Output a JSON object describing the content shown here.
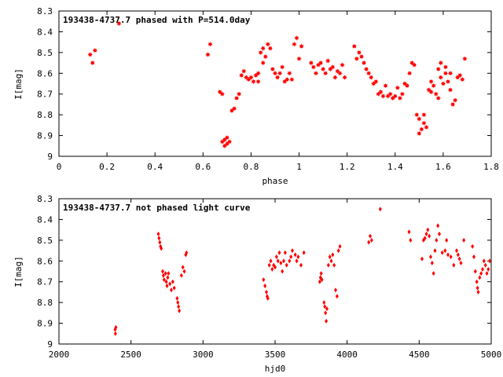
{
  "chart_data": [
    {
      "type": "scatter",
      "title": "193438-4737.7 phased with P=514.0day",
      "xlabel": "phase",
      "ylabel": "I[mag]",
      "xlim": [
        0,
        1.8
      ],
      "ylim": [
        9,
        8.3
      ],
      "y_inverted": true,
      "x_ticks": [
        "0",
        "0.2",
        "0.4",
        "0.6",
        "0.8",
        "1",
        "1.2",
        "1.4",
        "1.6",
        "1.8"
      ],
      "y_ticks": [
        "8.3",
        "8.4",
        "8.5",
        "8.6",
        "8.7",
        "8.8",
        "8.9",
        "9"
      ],
      "marker": "star",
      "color": "#ff0000",
      "points": [
        [
          0.13,
          8.51
        ],
        [
          0.14,
          8.55
        ],
        [
          0.15,
          8.49
        ],
        [
          0.25,
          8.36
        ],
        [
          0.62,
          8.51
        ],
        [
          0.63,
          8.46
        ],
        [
          0.67,
          8.69
        ],
        [
          0.68,
          8.7
        ],
        [
          0.68,
          8.93
        ],
        [
          0.69,
          8.95
        ],
        [
          0.69,
          8.92
        ],
        [
          0.7,
          8.94
        ],
        [
          0.7,
          8.91
        ],
        [
          0.71,
          8.93
        ],
        [
          0.72,
          8.78
        ],
        [
          0.73,
          8.77
        ],
        [
          0.74,
          8.72
        ],
        [
          0.75,
          8.7
        ],
        [
          0.76,
          8.61
        ],
        [
          0.77,
          8.59
        ],
        [
          0.78,
          8.62
        ],
        [
          0.79,
          8.63
        ],
        [
          0.8,
          8.62
        ],
        [
          0.81,
          8.64
        ],
        [
          0.82,
          8.61
        ],
        [
          0.83,
          8.6
        ],
        [
          0.83,
          8.64
        ],
        [
          0.84,
          8.5
        ],
        [
          0.85,
          8.55
        ],
        [
          0.85,
          8.48
        ],
        [
          0.86,
          8.52
        ],
        [
          0.87,
          8.46
        ],
        [
          0.88,
          8.48
        ],
        [
          0.89,
          8.58
        ],
        [
          0.9,
          8.6
        ],
        [
          0.91,
          8.62
        ],
        [
          0.92,
          8.6
        ],
        [
          0.93,
          8.57
        ],
        [
          0.94,
          8.64
        ],
        [
          0.95,
          8.63
        ],
        [
          0.96,
          8.6
        ],
        [
          0.97,
          8.63
        ],
        [
          0.98,
          8.46
        ],
        [
          0.99,
          8.43
        ],
        [
          1.0,
          8.53
        ],
        [
          1.01,
          8.47
        ],
        [
          1.05,
          8.55
        ],
        [
          1.06,
          8.57
        ],
        [
          1.07,
          8.6
        ],
        [
          1.08,
          8.56
        ],
        [
          1.09,
          8.55
        ],
        [
          1.1,
          8.58
        ],
        [
          1.11,
          8.6
        ],
        [
          1.12,
          8.54
        ],
        [
          1.13,
          8.58
        ],
        [
          1.14,
          8.57
        ],
        [
          1.15,
          8.62
        ],
        [
          1.16,
          8.59
        ],
        [
          1.17,
          8.6
        ],
        [
          1.18,
          8.56
        ],
        [
          1.19,
          8.62
        ],
        [
          1.23,
          8.47
        ],
        [
          1.24,
          8.53
        ],
        [
          1.25,
          8.5
        ],
        [
          1.26,
          8.52
        ],
        [
          1.27,
          8.55
        ],
        [
          1.28,
          8.58
        ],
        [
          1.29,
          8.6
        ],
        [
          1.3,
          8.62
        ],
        [
          1.31,
          8.65
        ],
        [
          1.32,
          8.64
        ],
        [
          1.33,
          8.7
        ],
        [
          1.34,
          8.69
        ],
        [
          1.35,
          8.71
        ],
        [
          1.36,
          8.66
        ],
        [
          1.37,
          8.71
        ],
        [
          1.38,
          8.7
        ],
        [
          1.39,
          8.72
        ],
        [
          1.4,
          8.71
        ],
        [
          1.41,
          8.67
        ],
        [
          1.42,
          8.72
        ],
        [
          1.43,
          8.7
        ],
        [
          1.44,
          8.65
        ],
        [
          1.45,
          8.66
        ],
        [
          1.46,
          8.6
        ],
        [
          1.47,
          8.55
        ],
        [
          1.48,
          8.56
        ],
        [
          1.49,
          8.8
        ],
        [
          1.5,
          8.82
        ],
        [
          1.5,
          8.89
        ],
        [
          1.51,
          8.87
        ],
        [
          1.52,
          8.84
        ],
        [
          1.52,
          8.8
        ],
        [
          1.53,
          8.86
        ],
        [
          1.54,
          8.68
        ],
        [
          1.55,
          8.69
        ],
        [
          1.55,
          8.64
        ],
        [
          1.56,
          8.66
        ],
        [
          1.57,
          8.7
        ],
        [
          1.58,
          8.72
        ],
        [
          1.58,
          8.58
        ],
        [
          1.59,
          8.62
        ],
        [
          1.59,
          8.55
        ],
        [
          1.6,
          8.65
        ],
        [
          1.61,
          8.6
        ],
        [
          1.61,
          8.57
        ],
        [
          1.62,
          8.64
        ],
        [
          1.63,
          8.6
        ],
        [
          1.63,
          8.68
        ],
        [
          1.64,
          8.75
        ],
        [
          1.65,
          8.73
        ],
        [
          1.66,
          8.62
        ],
        [
          1.67,
          8.61
        ],
        [
          1.68,
          8.63
        ],
        [
          1.69,
          8.53
        ]
      ]
    },
    {
      "type": "scatter",
      "title": "193438-4737.7 not phased light curve",
      "xlabel": "hjd0",
      "ylabel": "I[mag]",
      "xlim": [
        2000,
        5000
      ],
      "ylim": [
        9,
        8.3
      ],
      "y_inverted": true,
      "x_ticks": [
        "2000",
        "2500",
        "3000",
        "3500",
        "4000",
        "4500",
        "5000"
      ],
      "y_ticks": [
        "8.3",
        "8.4",
        "8.5",
        "8.6",
        "8.7",
        "8.8",
        "8.9",
        "9"
      ],
      "marker": "diamond",
      "color": "#ff0000",
      "points": [
        [
          2390,
          8.93
        ],
        [
          2392,
          8.95
        ],
        [
          2395,
          8.92
        ],
        [
          2690,
          8.47
        ],
        [
          2695,
          8.49
        ],
        [
          2700,
          8.51
        ],
        [
          2705,
          8.53
        ],
        [
          2710,
          8.54
        ],
        [
          2720,
          8.65
        ],
        [
          2725,
          8.67
        ],
        [
          2730,
          8.69
        ],
        [
          2740,
          8.66
        ],
        [
          2745,
          8.7
        ],
        [
          2750,
          8.72
        ],
        [
          2755,
          8.68
        ],
        [
          2760,
          8.66
        ],
        [
          2770,
          8.71
        ],
        [
          2780,
          8.74
        ],
        [
          2790,
          8.7
        ],
        [
          2800,
          8.73
        ],
        [
          2820,
          8.78
        ],
        [
          2825,
          8.8
        ],
        [
          2830,
          8.82
        ],
        [
          2835,
          8.84
        ],
        [
          2850,
          8.67
        ],
        [
          2860,
          8.63
        ],
        [
          2870,
          8.65
        ],
        [
          2880,
          8.57
        ],
        [
          2885,
          8.56
        ],
        [
          3420,
          8.69
        ],
        [
          3430,
          8.72
        ],
        [
          3440,
          8.75
        ],
        [
          3445,
          8.77
        ],
        [
          3450,
          8.78
        ],
        [
          3460,
          8.62
        ],
        [
          3470,
          8.6
        ],
        [
          3480,
          8.64
        ],
        [
          3490,
          8.62
        ],
        [
          3500,
          8.63
        ],
        [
          3510,
          8.58
        ],
        [
          3520,
          8.6
        ],
        [
          3530,
          8.56
        ],
        [
          3540,
          8.61
        ],
        [
          3550,
          8.65
        ],
        [
          3560,
          8.6
        ],
        [
          3570,
          8.56
        ],
        [
          3580,
          8.62
        ],
        [
          3600,
          8.6
        ],
        [
          3610,
          8.58
        ],
        [
          3620,
          8.55
        ],
        [
          3640,
          8.57
        ],
        [
          3650,
          8.6
        ],
        [
          3660,
          8.58
        ],
        [
          3680,
          8.62
        ],
        [
          3700,
          8.56
        ],
        [
          3810,
          8.7
        ],
        [
          3815,
          8.68
        ],
        [
          3820,
          8.66
        ],
        [
          3825,
          8.69
        ],
        [
          3840,
          8.8
        ],
        [
          3845,
          8.82
        ],
        [
          3850,
          8.85
        ],
        [
          3855,
          8.89
        ],
        [
          3860,
          8.83
        ],
        [
          3870,
          8.62
        ],
        [
          3880,
          8.58
        ],
        [
          3890,
          8.6
        ],
        [
          3900,
          8.57
        ],
        [
          3910,
          8.62
        ],
        [
          3920,
          8.74
        ],
        [
          3930,
          8.77
        ],
        [
          3940,
          8.55
        ],
        [
          3950,
          8.53
        ],
        [
          4150,
          8.51
        ],
        [
          4160,
          8.48
        ],
        [
          4170,
          8.5
        ],
        [
          4230,
          8.35
        ],
        [
          4430,
          8.46
        ],
        [
          4440,
          8.5
        ],
        [
          4520,
          8.59
        ],
        [
          4530,
          8.5
        ],
        [
          4540,
          8.49
        ],
        [
          4550,
          8.47
        ],
        [
          4560,
          8.45
        ],
        [
          4570,
          8.48
        ],
        [
          4580,
          8.58
        ],
        [
          4590,
          8.61
        ],
        [
          4600,
          8.66
        ],
        [
          4610,
          8.55
        ],
        [
          4620,
          8.5
        ],
        [
          4630,
          8.43
        ],
        [
          4640,
          8.47
        ],
        [
          4660,
          8.56
        ],
        [
          4680,
          8.55
        ],
        [
          4690,
          8.5
        ],
        [
          4700,
          8.57
        ],
        [
          4720,
          8.58
        ],
        [
          4740,
          8.62
        ],
        [
          4760,
          8.55
        ],
        [
          4770,
          8.57
        ],
        [
          4780,
          8.59
        ],
        [
          4790,
          8.61
        ],
        [
          4810,
          8.5
        ],
        [
          4870,
          8.53
        ],
        [
          4880,
          8.58
        ],
        [
          4890,
          8.65
        ],
        [
          4900,
          8.7
        ],
        [
          4905,
          8.73
        ],
        [
          4910,
          8.75
        ],
        [
          4920,
          8.68
        ],
        [
          4930,
          8.66
        ],
        [
          4940,
          8.64
        ],
        [
          4950,
          8.6
        ],
        [
          4960,
          8.62
        ],
        [
          4970,
          8.66
        ],
        [
          4980,
          8.64
        ],
        [
          4990,
          8.6
        ]
      ]
    }
  ]
}
